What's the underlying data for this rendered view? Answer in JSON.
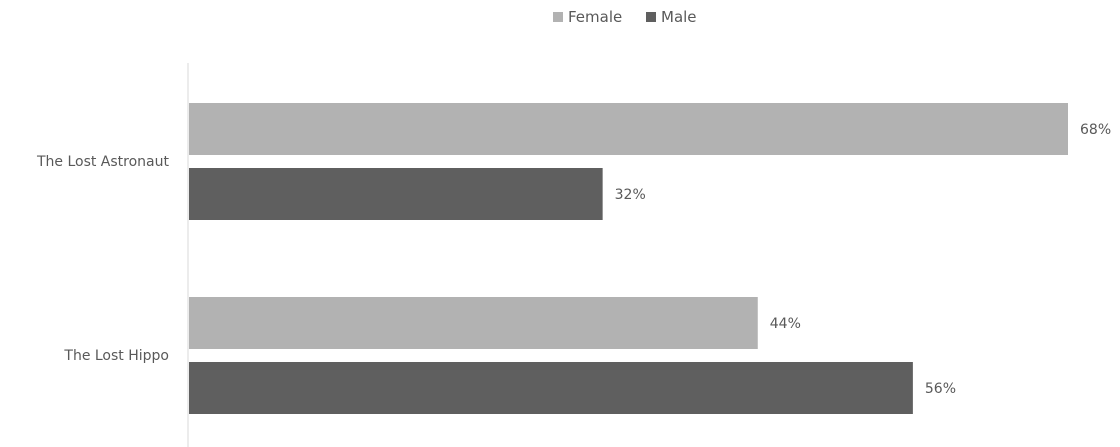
{
  "chart_data": {
    "type": "bar",
    "orientation": "horizontal",
    "categories": [
      "The Lost Astronaut",
      "The Lost Hippo"
    ],
    "series": [
      {
        "name": "Female",
        "values": [
          68,
          44
        ],
        "labels": [
          "68%",
          "44%"
        ],
        "color": "#b2b2b2"
      },
      {
        "name": "Male",
        "values": [
          32,
          56
        ],
        "labels": [
          "32%",
          "56%"
        ],
        "color": "#5f5f5f"
      }
    ],
    "value_unit": "%",
    "xlim": [
      0,
      68
    ],
    "grid": false,
    "legend_position": "top"
  }
}
